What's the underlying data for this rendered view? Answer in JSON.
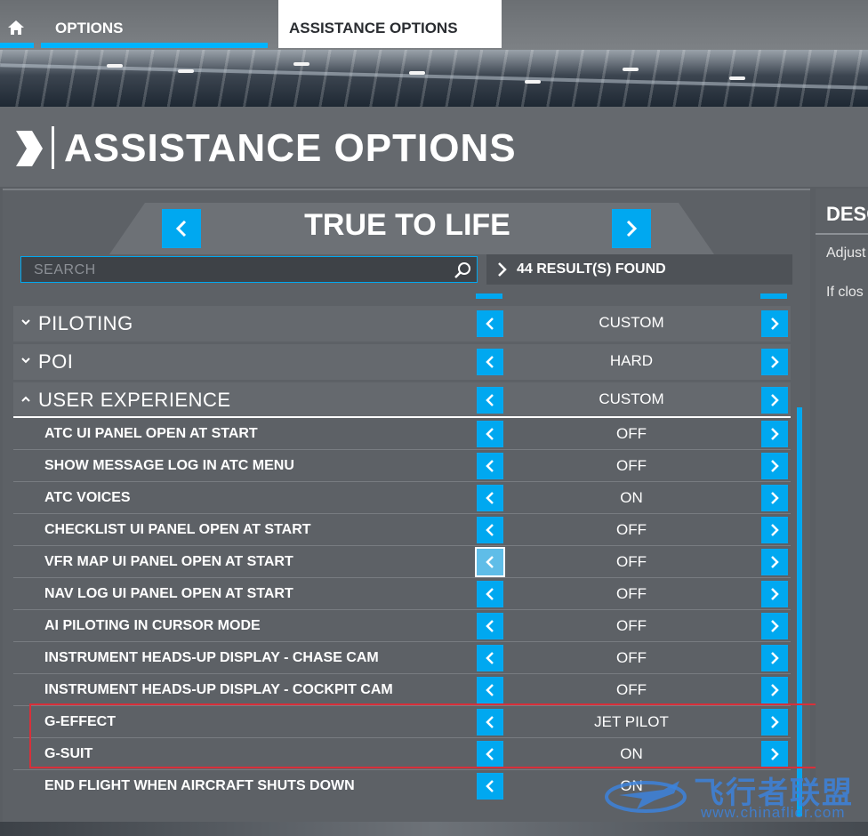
{
  "nav": {
    "home_icon": "home-icon",
    "tabs": [
      {
        "label": "OPTIONS"
      },
      {
        "label": "ASSISTANCE OPTIONS"
      }
    ]
  },
  "header": {
    "title": "ASSISTANCE OPTIONS"
  },
  "preset": {
    "value": "TRUE TO LIFE"
  },
  "search": {
    "placeholder": "SEARCH"
  },
  "results": {
    "text": "44 RESULT(S) FOUND"
  },
  "categories": [
    {
      "label": "PILOTING",
      "value": "CUSTOM",
      "expanded": false
    },
    {
      "label": "POI",
      "value": "HARD",
      "expanded": false
    },
    {
      "label": "USER EXPERIENCE",
      "value": "CUSTOM",
      "expanded": true
    }
  ],
  "items": [
    {
      "label": "ATC UI PANEL OPEN AT START",
      "value": "OFF"
    },
    {
      "label": "SHOW MESSAGE LOG IN ATC MENU",
      "value": "OFF"
    },
    {
      "label": "ATC VOICES",
      "value": "ON"
    },
    {
      "label": "CHECKLIST UI PANEL OPEN AT START",
      "value": "OFF"
    },
    {
      "label": "VFR MAP UI PANEL OPEN AT START",
      "value": "OFF"
    },
    {
      "label": "NAV LOG UI PANEL OPEN AT START",
      "value": "OFF"
    },
    {
      "label": "AI PILOTING IN CURSOR MODE",
      "value": "OFF"
    },
    {
      "label": "INSTRUMENT HEADS-UP DISPLAY - CHASE CAM",
      "value": "OFF"
    },
    {
      "label": "INSTRUMENT HEADS-UP DISPLAY - COCKPIT CAM",
      "value": "OFF"
    },
    {
      "label": "G-EFFECT",
      "value": "JET PILOT"
    },
    {
      "label": "G-SUIT",
      "value": "ON"
    },
    {
      "label": "END FLIGHT WHEN AIRCRAFT SHUTS DOWN",
      "value": "ON"
    }
  ],
  "description": {
    "title": "DESC",
    "lines": [
      "Adjust",
      "If clos"
    ]
  },
  "watermark": {
    "cn": "飞行者联盟",
    "url": "www.chinaflier.com"
  },
  "colors": {
    "accent": "#00a8f0",
    "highlight_box": "#d8303a"
  }
}
